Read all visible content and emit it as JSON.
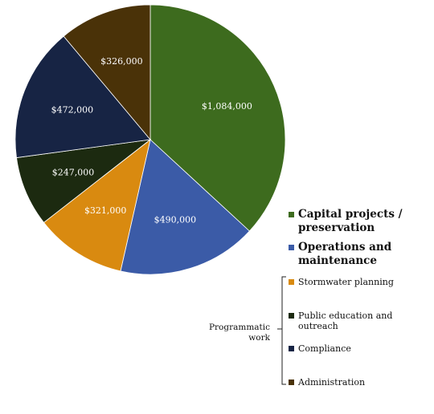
{
  "chart_data": {
    "type": "pie",
    "categories": [
      "Capital projects / preservation",
      "Operations and maintenance",
      "Stormwater planning",
      "Public education and outreach",
      "Compliance",
      "Administration"
    ],
    "values": [
      1084000,
      490000,
      321000,
      247000,
      472000,
      326000
    ],
    "value_labels": [
      "$1,084,000",
      "$490,000",
      "$321,000",
      "$247,000",
      "$472,000",
      "$326,000"
    ],
    "colors": [
      "#3d6b1e",
      "#3b5ba7",
      "#d98a10",
      "#1c2a10",
      "#172444",
      "#4a3208"
    ],
    "label_colors": [
      "#ffffff",
      "#ffffff",
      "#ffffff",
      "#ffffff",
      "#ffffff",
      "#ffffff"
    ],
    "start_angle_deg": 0,
    "direction": "clockwise",
    "legend": {
      "main": [
        {
          "label": "Capital projects /\npreservation",
          "color": "#3d6b1e"
        },
        {
          "label": "Operations and\nmaintenance",
          "color": "#3b5ba7"
        }
      ],
      "group_label": "Programmatic\nwork",
      "grouped": [
        {
          "label": "Stormwater planning",
          "color": "#d98a10"
        },
        {
          "label": "Public education and outreach",
          "color": "#1c2a10"
        },
        {
          "label": "Compliance",
          "color": "#172444"
        },
        {
          "label": "Administration",
          "color": "#4a3208"
        }
      ]
    }
  }
}
